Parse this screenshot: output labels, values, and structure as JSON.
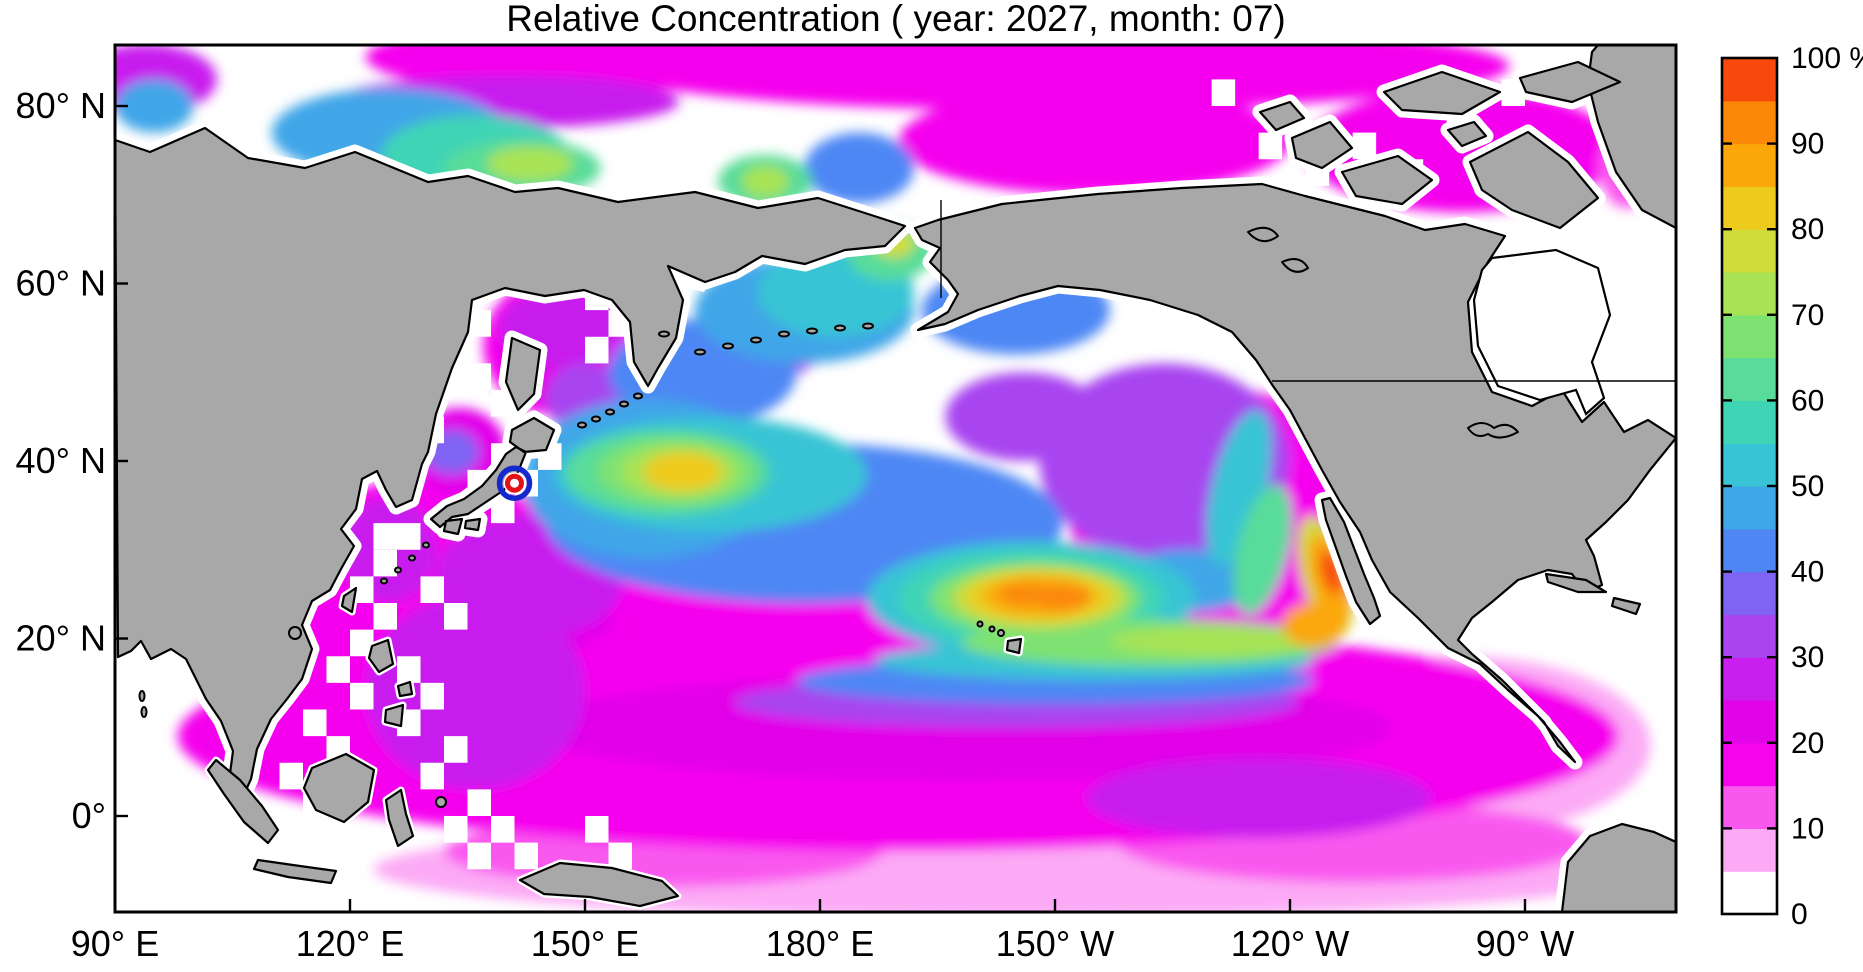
{
  "title": "Relative Concentration ( year: 2027, month: 07)",
  "chart_data": {
    "type": "heatmap",
    "subtype": "filled-contour-geographic-map",
    "title": "Relative Concentration ( year: 2027, month: 07)",
    "year": "2027",
    "month": "07",
    "units": "%",
    "map_extent": {
      "lon_min_deg_east": 90,
      "lon_max_deg_east": 289,
      "lat_min": -11,
      "lat_max": 87
    },
    "x_axis": {
      "ticks": [
        {
          "label": "90° E",
          "lon": 90
        },
        {
          "label": "120° E",
          "lon": 120
        },
        {
          "label": "150° E",
          "lon": 150
        },
        {
          "label": "180° E",
          "lon": 180
        },
        {
          "label": "150° W",
          "lon": 210
        },
        {
          "label": "120° W",
          "lon": 240
        },
        {
          "label": "90° W",
          "lon": 270
        }
      ]
    },
    "y_axis": {
      "ticks": [
        {
          "label": "80° N",
          "lat": 80
        },
        {
          "label": "60° N",
          "lat": 60
        },
        {
          "label": "40° N",
          "lat": 40
        },
        {
          "label": "20° N",
          "lat": 20
        },
        {
          "label": "0°",
          "lat": 0
        }
      ]
    },
    "colorbar": {
      "tick_labels": [
        "100 %",
        "90",
        "80",
        "70",
        "60",
        "50",
        "40",
        "30",
        "20",
        "10",
        "0"
      ],
      "levels": [
        0,
        5,
        10,
        15,
        20,
        25,
        30,
        35,
        40,
        45,
        50,
        55,
        60,
        65,
        70,
        75,
        80,
        85,
        90,
        95,
        100
      ],
      "colors": [
        "#ffffff",
        "#fcaaf5",
        "#f958ef",
        "#f504ee",
        "#e204e9",
        "#c81fee",
        "#a844f0",
        "#7f63f3",
        "#4e87f4",
        "#3fa6e8",
        "#38c4d4",
        "#3fd4b6",
        "#59dc99",
        "#7ee272",
        "#a8e355",
        "#d0dc3b",
        "#eeca1d",
        "#fba709",
        "#fb8807",
        "#f8490d"
      ]
    },
    "source_marker": {
      "name": "release-site-fukushima",
      "lon": 141.0,
      "lat": 37.5,
      "outer_ring_color": "#1528cd",
      "inner_ring_color": "#e31219"
    },
    "style": {
      "land": "#a8a8a8",
      "coastline": "#000000",
      "background": "#ffffff",
      "frame": "#000000"
    },
    "field_regions": [
      {
        "v": 7,
        "lon": 205,
        "lat": -6,
        "rlon": 82,
        "rlat": 5.5,
        "note": "southern pink band"
      },
      {
        "v": 7,
        "lon": 262,
        "lat": 8,
        "rlon": 24,
        "rlat": 10
      },
      {
        "v": 12,
        "lon": 248,
        "lat": -3,
        "rlon": 30,
        "rlat": 4.5
      },
      {
        "v": 12,
        "lon": 160,
        "lat": -4,
        "rlon": 28,
        "rlat": 4
      },
      {
        "v": 17,
        "lon": 190,
        "lat": 9,
        "rlon": 92,
        "rlat": 13,
        "note": "tropical magenta band"
      },
      {
        "v": 17,
        "lon": 130,
        "lat": 20,
        "rlon": 26,
        "rlat": 18,
        "note": "west Pacific magenta"
      },
      {
        "v": 17,
        "lon": 175,
        "lat": 25,
        "rlon": 30,
        "rlat": 5
      },
      {
        "v": 17,
        "lon": 232,
        "lat": 33,
        "rlon": 20,
        "rlat": 15,
        "note": "NE Pacific magenta"
      },
      {
        "v": 17,
        "lon": 147,
        "lat": 53,
        "rlon": 10,
        "rlat": 8,
        "note": "Sea of Okhotsk magenta"
      },
      {
        "v": 17,
        "lon": 210,
        "lat": 84.5,
        "rlon": 58,
        "rlat": 5,
        "note": "Arctic magenta"
      },
      {
        "v": 17,
        "lon": 148,
        "lat": 85.5,
        "rlon": 26,
        "rlat": 4
      },
      {
        "v": 17,
        "lon": 215,
        "lat": 76,
        "rlon": 25,
        "rlat": 6,
        "note": "Beaufort magenta"
      },
      {
        "v": 17,
        "lon": 262,
        "lat": 75,
        "rlon": 20,
        "rlat": 7,
        "note": "Canadian Arctic magenta"
      },
      {
        "v": 12,
        "lon": 283,
        "lat": 73,
        "rlon": 3.5,
        "rlat": 4.5,
        "note": "pink streak W of Greenland"
      },
      {
        "v": 17,
        "lon": 288,
        "lat": 81,
        "rlon": 4,
        "rlat": 5
      },
      {
        "v": 22,
        "lon": 198,
        "lat": 10,
        "rlon": 55,
        "rlat": 6
      },
      {
        "v": 22,
        "lon": 134,
        "lat": 41,
        "rlon": 6,
        "rlat": 5,
        "note": "Sea of Japan magenta"
      },
      {
        "v": 22,
        "lon": 146,
        "lat": 52,
        "rlon": 7,
        "rlat": 6,
        "note": "Okhotsk bright magenta"
      },
      {
        "v": 22,
        "lon": 151,
        "lat": 47.5,
        "rlon": 6,
        "rlat": 3,
        "rot": -35
      },
      {
        "v": 22,
        "lon": 140,
        "lat": 20,
        "rlon": 14,
        "rlat": 3,
        "rot": -10
      },
      {
        "v": 27,
        "lon": 136,
        "lat": 14,
        "rlon": 14,
        "rlat": 11,
        "note": "Philippine Sea purple"
      },
      {
        "v": 27,
        "lon": 125,
        "lat": 30,
        "rlon": 6,
        "rlat": 6
      },
      {
        "v": 27,
        "lon": 143,
        "lat": 27,
        "rlon": 12,
        "rlat": 7,
        "note": "purple south of Japan"
      },
      {
        "v": 27,
        "lon": 147,
        "lat": 55,
        "rlon": 8,
        "rlat": 4.5
      },
      {
        "v": 27,
        "lon": 236,
        "lat": 2,
        "rlon": 22,
        "rlat": 4.5,
        "note": "equatorial purple patch"
      },
      {
        "v": 27,
        "lon": 94,
        "lat": 83,
        "rlon": 9,
        "rlat": 4,
        "note": "Kara Sea purple"
      },
      {
        "v": 27,
        "lon": 140,
        "lat": 80.5,
        "rlon": 22,
        "rlat": 3
      },
      {
        "v": 32,
        "lon": 224,
        "lat": 40,
        "rlon": 16,
        "rlat": 11,
        "note": "NE Pacific purple core"
      },
      {
        "v": 32,
        "lon": 206,
        "lat": 45,
        "rlon": 10,
        "rlat": 5
      },
      {
        "v": 32,
        "lon": 172,
        "lat": 52.5,
        "rlon": 8,
        "rlat": 3.5,
        "note": "western Aleutian violet"
      },
      {
        "v": 32,
        "lon": 150,
        "lat": 47,
        "rlon": 5,
        "rlat": 4
      },
      {
        "v": 32,
        "lon": 205,
        "lat": 12.8,
        "rlon": 36,
        "rlat": 2.8
      },
      {
        "v": 37,
        "lon": 133,
        "lat": 41,
        "rlon": 3.5,
        "rlat": 2.5
      },
      {
        "v": 42,
        "lon": 178,
        "lat": 33,
        "rlon": 33,
        "rlat": 9,
        "note": "mid-latitude blue band"
      },
      {
        "v": 42,
        "lon": 165,
        "lat": 50,
        "rlon": 12,
        "rlat": 6
      },
      {
        "v": 42,
        "lon": 205,
        "lat": 57,
        "rlon": 12,
        "rlat": 5,
        "note": "Gulf of Alaska blue"
      },
      {
        "v": 42,
        "lon": 210,
        "lat": 15.2,
        "rlon": 33,
        "rlat": 2.6
      },
      {
        "v": 42,
        "lon": 185,
        "lat": 73,
        "rlon": 7,
        "rlat": 4
      },
      {
        "v": 47,
        "lon": 178,
        "lat": 57,
        "rlon": 14,
        "rlat": 6,
        "note": "Bering Sea blue"
      },
      {
        "v": 47,
        "lon": 158,
        "lat": 38,
        "rlon": 16,
        "rlat": 9
      },
      {
        "v": 47,
        "lon": 125,
        "lat": 77,
        "rlon": 15,
        "rlat": 5,
        "note": "Arctic blue"
      },
      {
        "v": 47,
        "lon": 95,
        "lat": 80,
        "rlon": 5,
        "rlat": 3
      },
      {
        "v": 47,
        "lon": 227,
        "lat": 26.5,
        "rlon": 9,
        "rlat": 3.5
      },
      {
        "v": 52,
        "lon": 166,
        "lat": 38.5,
        "rlon": 20,
        "rlat": 6.5,
        "note": "NW Pacific cyan"
      },
      {
        "v": 52,
        "lon": 182,
        "lat": 59,
        "rlon": 10,
        "rlat": 5
      },
      {
        "v": 52,
        "lon": 233.5,
        "lat": 37,
        "rlon": 3.5,
        "rlat": 9,
        "rot": 14,
        "note": "California coastal cyan"
      },
      {
        "v": 52,
        "lon": 207,
        "lat": 24.5,
        "rlon": 21,
        "rlat": 6.5,
        "note": "Hawaii outer cyan"
      },
      {
        "v": 52,
        "lon": 215,
        "lat": 17.5,
        "rlon": 28,
        "rlat": 2.2
      },
      {
        "v": 57,
        "lon": 136,
        "lat": 74.5,
        "rlon": 12,
        "rlat": 4.5,
        "note": "Arctic teal"
      },
      {
        "v": 57,
        "lon": 207,
        "lat": 24.5,
        "rlon": 17,
        "rlat": 5.5
      },
      {
        "v": 62,
        "lon": 160.5,
        "lat": 38.7,
        "rlon": 13,
        "rlat": 4.8,
        "note": "NW Pacific green"
      },
      {
        "v": 62,
        "lon": 142,
        "lat": 73,
        "rlon": 10,
        "rlat": 3.2,
        "note": "East Siberian Sea green"
      },
      {
        "v": 62,
        "lon": 173,
        "lat": 71.5,
        "rlon": 6,
        "rlat": 3,
        "note": "Chukchi green"
      },
      {
        "v": 62,
        "lon": 189,
        "lat": 63.5,
        "rlon": 5.5,
        "rlat": 3.2,
        "note": "Norton Sound green"
      },
      {
        "v": 62,
        "lon": 236.5,
        "lat": 30,
        "rlon": 3.2,
        "rlat": 7.5,
        "rot": 14,
        "note": "California coastal green"
      },
      {
        "v": 67,
        "lon": 222,
        "lat": 19.5,
        "rlon": 24,
        "rlat": 2.6,
        "note": "tropical green band"
      },
      {
        "v": 67,
        "lon": 161.5,
        "lat": 38.8,
        "rlon": 10,
        "rlat": 3.8
      },
      {
        "v": 67,
        "lon": 207.5,
        "lat": 24.5,
        "rlon": 13.5,
        "rlat": 4.2
      },
      {
        "v": 72,
        "lon": 162,
        "lat": 38.8,
        "rlon": 7.5,
        "rlat": 3
      },
      {
        "v": 72,
        "lon": 143,
        "lat": 73.5,
        "rlon": 5.5,
        "rlat": 2
      },
      {
        "v": 72,
        "lon": 173,
        "lat": 71.5,
        "rlon": 3,
        "rlat": 1.8
      },
      {
        "v": 72,
        "lon": 230,
        "lat": 19.7,
        "rlon": 13,
        "rlat": 1.6
      },
      {
        "v": 77,
        "lon": 208,
        "lat": 24.6,
        "rlon": 11,
        "rlat": 3.4
      },
      {
        "v": 77,
        "lon": 189.5,
        "lat": 64.5,
        "rlon": 2.6,
        "rlat": 1.6
      },
      {
        "v": 77,
        "lon": 244.5,
        "lat": 27,
        "rlon": 3,
        "rlat": 7,
        "rot": -15,
        "note": "Baja coastal yellow"
      },
      {
        "v": 82,
        "lon": 162.5,
        "lat": 38.8,
        "rlon": 5,
        "rlat": 2.2,
        "note": "NW Pacific yellow core"
      },
      {
        "v": 82,
        "lon": 208,
        "lat": 24.7,
        "rlon": 9,
        "rlat": 2.8,
        "note": "Hawaii yellow"
      },
      {
        "v": 87,
        "lon": 208,
        "lat": 24.8,
        "rlon": 7,
        "rlat": 2.2
      },
      {
        "v": 87,
        "lon": 243,
        "lat": 21.5,
        "rlon": 4,
        "rlat": 2.5
      },
      {
        "v": 87,
        "lon": 245,
        "lat": 26.5,
        "rlon": 2.2,
        "rlat": 5.5,
        "rot": -15,
        "note": "Baja orange"
      },
      {
        "v": 92,
        "lon": 206,
        "lat": 25,
        "rlon": 3,
        "rlat": 1.2,
        "note": "orange core W of Hawaii"
      },
      {
        "v": 92,
        "lon": 211,
        "lat": 24.6,
        "rlon": 3.5,
        "rlat": 1.4,
        "note": "orange core NE of Hawaii"
      },
      {
        "v": 97,
        "lon": 245.3,
        "lat": 27.5,
        "rlon": 1.3,
        "rlat": 2.6,
        "rot": -15,
        "note": "Baja California maximum"
      }
    ],
    "no_data_cells": [
      {
        "lon": 120,
        "lat": 18
      },
      {
        "lon": 117,
        "lat": 15
      },
      {
        "lon": 120,
        "lat": 12
      },
      {
        "lon": 114,
        "lat": 9
      },
      {
        "lon": 117,
        "lat": 6
      },
      {
        "lon": 111,
        "lat": 3
      },
      {
        "lon": 114,
        "lat": 0
      },
      {
        "lon": 117,
        "lat": 0
      },
      {
        "lon": 123,
        "lat": 21
      },
      {
        "lon": 120,
        "lat": 24
      },
      {
        "lon": 123,
        "lat": 27
      },
      {
        "lon": 126,
        "lat": 30
      },
      {
        "lon": 123,
        "lat": 30
      },
      {
        "lon": 129,
        "lat": 24
      },
      {
        "lon": 132,
        "lat": 21
      },
      {
        "lon": 126,
        "lat": 15
      },
      {
        "lon": 129,
        "lat": 12
      },
      {
        "lon": 126,
        "lat": 9
      },
      {
        "lon": 132,
        "lat": 6
      },
      {
        "lon": 129,
        "lat": 3
      },
      {
        "lon": 135,
        "lat": 0
      },
      {
        "lon": 132,
        "lat": -3
      },
      {
        "lon": 138,
        "lat": -3
      },
      {
        "lon": 135,
        "lat": -6
      },
      {
        "lon": 141,
        "lat": -6
      },
      {
        "lon": 150,
        "lat": -3
      },
      {
        "lon": 153,
        "lat": -6
      },
      {
        "lon": 135,
        "lat": 54
      },
      {
        "lon": 132,
        "lat": 51
      },
      {
        "lon": 135,
        "lat": 48
      },
      {
        "lon": 138,
        "lat": 45
      },
      {
        "lon": 150,
        "lat": 57
      },
      {
        "lon": 153,
        "lat": 54
      },
      {
        "lon": 150,
        "lat": 51
      },
      {
        "lon": 156,
        "lat": 60
      },
      {
        "lon": 159,
        "lat": 57
      },
      {
        "lon": 162,
        "lat": 63
      },
      {
        "lon": 159,
        "lat": 63
      },
      {
        "lon": 165,
        "lat": 63
      },
      {
        "lon": 162,
        "lat": 60
      },
      {
        "lon": 159,
        "lat": 60
      },
      {
        "lon": 138,
        "lat": 39
      },
      {
        "lon": 141,
        "lat": 36
      },
      {
        "lon": 135,
        "lat": 36
      },
      {
        "lon": 138,
        "lat": 33
      },
      {
        "lon": 144,
        "lat": 39
      },
      {
        "lon": 129,
        "lat": 42
      },
      {
        "lon": 126,
        "lat": 38
      },
      {
        "lon": 230,
        "lat": 80
      },
      {
        "lon": 236,
        "lat": 74
      },
      {
        "lon": 242,
        "lat": 71
      },
      {
        "lon": 248,
        "lat": 74
      },
      {
        "lon": 254,
        "lat": 71
      },
      {
        "lon": 260,
        "lat": 77
      },
      {
        "lon": 267,
        "lat": 80
      },
      {
        "lon": 282,
        "lat": 74
      }
    ]
  }
}
